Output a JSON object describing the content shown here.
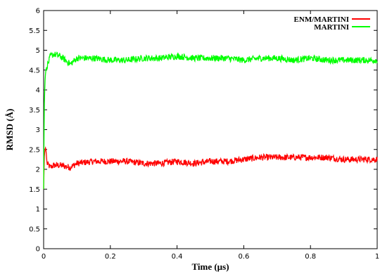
{
  "chart_data": {
    "type": "line",
    "xlabel": "Time (µs)",
    "ylabel": "RMSD (Å)",
    "xlim": [
      0,
      1
    ],
    "ylim": [
      0,
      6
    ],
    "xticks": [
      "0",
      "0.2",
      "0.4",
      "0.6",
      "0.8",
      "1"
    ],
    "yticks": [
      "0",
      "0.5",
      "1",
      "1.5",
      "2",
      "2.5",
      "3",
      "3.5",
      "4",
      "4.5",
      "5",
      "5.5",
      "6"
    ],
    "grid": false,
    "legend_position": "top-right",
    "series": [
      {
        "name": "ENM/MARTINI",
        "color": "#ff0000",
        "x": [
          0,
          0.002,
          0.004,
          0.006,
          0.008,
          0.01,
          0.015,
          0.02,
          0.03,
          0.05,
          0.08,
          0.1,
          0.15,
          0.2,
          0.25,
          0.3,
          0.35,
          0.4,
          0.45,
          0.5,
          0.55,
          0.6,
          0.65,
          0.7,
          0.75,
          0.8,
          0.85,
          0.9,
          0.95,
          1.0
        ],
        "y": [
          1.5,
          2.3,
          2.5,
          2.55,
          2.4,
          2.15,
          2.1,
          2.05,
          2.1,
          2.1,
          2.05,
          2.15,
          2.2,
          2.2,
          2.2,
          2.15,
          2.15,
          2.2,
          2.15,
          2.2,
          2.2,
          2.25,
          2.3,
          2.3,
          2.3,
          2.3,
          2.3,
          2.25,
          2.25,
          2.25
        ]
      },
      {
        "name": "MARTINI",
        "color": "#00ff00",
        "x": [
          0,
          0.002,
          0.004,
          0.006,
          0.008,
          0.01,
          0.015,
          0.02,
          0.03,
          0.05,
          0.08,
          0.1,
          0.15,
          0.2,
          0.25,
          0.3,
          0.35,
          0.4,
          0.45,
          0.5,
          0.55,
          0.6,
          0.65,
          0.7,
          0.75,
          0.8,
          0.85,
          0.9,
          0.95,
          1.0
        ],
        "y": [
          1.5,
          3.6,
          4.2,
          4.45,
          4.55,
          4.6,
          4.7,
          4.85,
          4.9,
          4.85,
          4.65,
          4.8,
          4.8,
          4.75,
          4.75,
          4.8,
          4.8,
          4.85,
          4.8,
          4.8,
          4.8,
          4.75,
          4.8,
          4.8,
          4.75,
          4.8,
          4.75,
          4.75,
          4.75,
          4.75
        ]
      }
    ]
  }
}
